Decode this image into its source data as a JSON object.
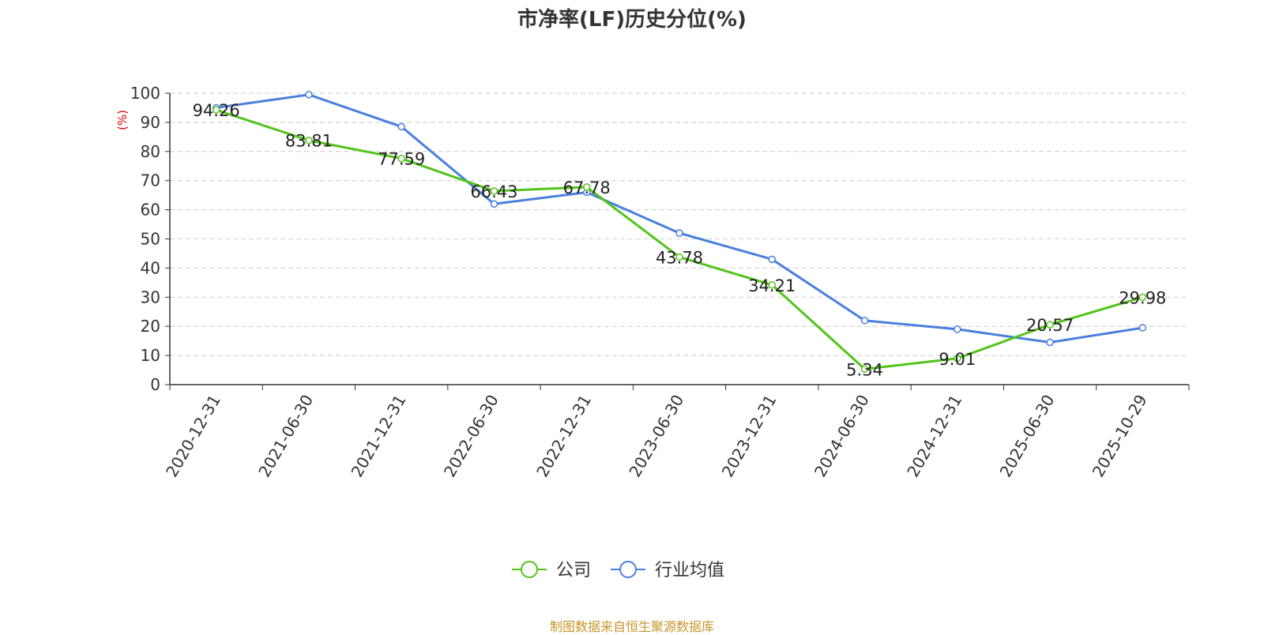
{
  "chart_data": {
    "type": "line",
    "title": "市净率(LF)历史分位(%)",
    "ylabel": "(%)",
    "ylim": [
      0,
      100
    ],
    "yticks": [
      0,
      10,
      20,
      30,
      40,
      50,
      60,
      70,
      80,
      90,
      100
    ],
    "categories": [
      "2020-12-31",
      "2021-06-30",
      "2021-12-31",
      "2022-06-30",
      "2022-12-31",
      "2023-06-30",
      "2023-12-31",
      "2024-06-30",
      "2024-12-31",
      "2025-06-30",
      "2025-10-29"
    ],
    "series": [
      {
        "name": "公司",
        "color": "#52c41a",
        "labeled": true,
        "values": [
          94.26,
          83.81,
          77.59,
          66.43,
          67.78,
          43.78,
          34.21,
          5.34,
          9.01,
          20.57,
          29.98
        ]
      },
      {
        "name": "行业均值",
        "color": "#4a7fde",
        "labeled": false,
        "values": [
          95,
          99.5,
          88.5,
          62,
          66,
          52,
          43,
          22,
          19,
          14.5,
          19.5
        ]
      }
    ],
    "grid": true,
    "legend_position": "bottom-center"
  },
  "footer": "制图数据来自恒生聚源数据库"
}
